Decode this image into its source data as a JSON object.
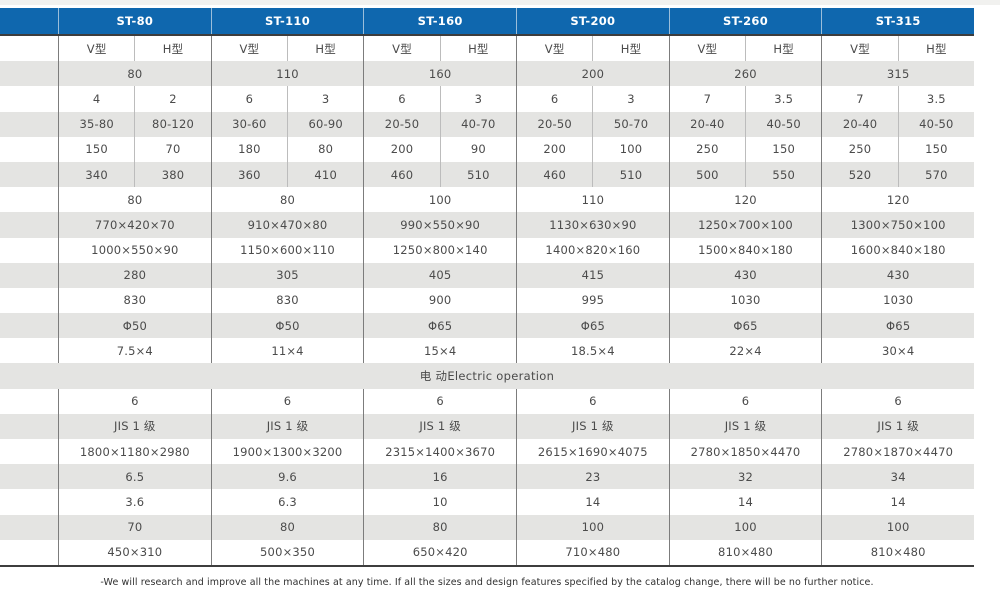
{
  "page": {
    "footnote": "-We will research and improve all the machines at any time. If all the sizes and design features specified by the catalog change, there will be no further notice."
  },
  "colors": {
    "header_blue": "#0f67ae",
    "stripe_gray": "#e4e4e2",
    "dark_border": "#3d3d3d"
  },
  "table": {
    "corner_label": "",
    "models": [
      "ST-80",
      "ST-110",
      "ST-160",
      "ST-200",
      "ST-260",
      "ST-315"
    ],
    "type_headers": [
      "V型",
      "H型"
    ],
    "electric_row_label": "电 动Electric operation",
    "body_rows": [
      {
        "kind": "merged",
        "cells": [
          "80",
          "110",
          "160",
          "200",
          "260",
          "315"
        ]
      },
      {
        "kind": "split",
        "cells": [
          [
            "4",
            "2"
          ],
          [
            "6",
            "3"
          ],
          [
            "6",
            "3"
          ],
          [
            "6",
            "3"
          ],
          [
            "7",
            "3.5"
          ],
          [
            "7",
            "3.5"
          ]
        ]
      },
      {
        "kind": "split",
        "cells": [
          [
            "35-80",
            "80-120"
          ],
          [
            "30-60",
            "60-90"
          ],
          [
            "20-50",
            "40-70"
          ],
          [
            "20-50",
            "50-70"
          ],
          [
            "20-40",
            "40-50"
          ],
          [
            "20-40",
            "40-50"
          ]
        ]
      },
      {
        "kind": "split",
        "cells": [
          [
            "150",
            "70"
          ],
          [
            "180",
            "80"
          ],
          [
            "200",
            "90"
          ],
          [
            "200",
            "100"
          ],
          [
            "250",
            "150"
          ],
          [
            "250",
            "150"
          ]
        ]
      },
      {
        "kind": "split",
        "cells": [
          [
            "340",
            "380"
          ],
          [
            "360",
            "410"
          ],
          [
            "460",
            "510"
          ],
          [
            "460",
            "510"
          ],
          [
            "500",
            "550"
          ],
          [
            "520",
            "570"
          ]
        ]
      },
      {
        "kind": "merged",
        "cells": [
          "80",
          "80",
          "100",
          "110",
          "120",
          "120"
        ]
      },
      {
        "kind": "merged",
        "cells": [
          "770×420×70",
          "910×470×80",
          "990×550×90",
          "1130×630×90",
          "1250×700×100",
          "1300×750×100"
        ]
      },
      {
        "kind": "merged",
        "cells": [
          "1000×550×90",
          "1150×600×110",
          "1250×800×140",
          "1400×820×160",
          "1500×840×180",
          "1600×840×180"
        ]
      },
      {
        "kind": "merged",
        "cells": [
          "280",
          "305",
          "405",
          "415",
          "430",
          "430"
        ]
      },
      {
        "kind": "merged",
        "cells": [
          "830",
          "830",
          "900",
          "995",
          "1030",
          "1030"
        ]
      },
      {
        "kind": "merged",
        "cells": [
          "Φ50",
          "Φ50",
          "Φ65",
          "Φ65",
          "Φ65",
          "Φ65"
        ]
      },
      {
        "kind": "merged",
        "cells": [
          "7.5×4",
          "11×4",
          "15×4",
          "18.5×4",
          "22×4",
          "30×4"
        ]
      },
      {
        "kind": "span"
      },
      {
        "kind": "merged",
        "cells": [
          "6",
          "6",
          "6",
          "6",
          "6",
          "6"
        ]
      },
      {
        "kind": "merged",
        "cells": [
          "JIS 1 级",
          "JIS 1 级",
          "JIS 1 级",
          "JIS 1 级",
          "JIS 1 级",
          "JIS 1 级"
        ]
      },
      {
        "kind": "merged",
        "cells": [
          "1800×1180×2980",
          "1900×1300×3200",
          "2315×1400×3670",
          "2615×1690×4075",
          "2780×1850×4470",
          "2780×1870×4470"
        ]
      },
      {
        "kind": "merged",
        "cells": [
          "6.5",
          "9.6",
          "16",
          "23",
          "32",
          "34"
        ]
      },
      {
        "kind": "merged",
        "cells": [
          "3.6",
          "6.3",
          "10",
          "14",
          "14",
          "14"
        ]
      },
      {
        "kind": "merged",
        "cells": [
          "70",
          "80",
          "80",
          "100",
          "100",
          "100"
        ]
      },
      {
        "kind": "merged",
        "cells": [
          "450×310",
          "500×350",
          "650×420",
          "710×480",
          "810×480",
          "810×480"
        ]
      }
    ]
  }
}
